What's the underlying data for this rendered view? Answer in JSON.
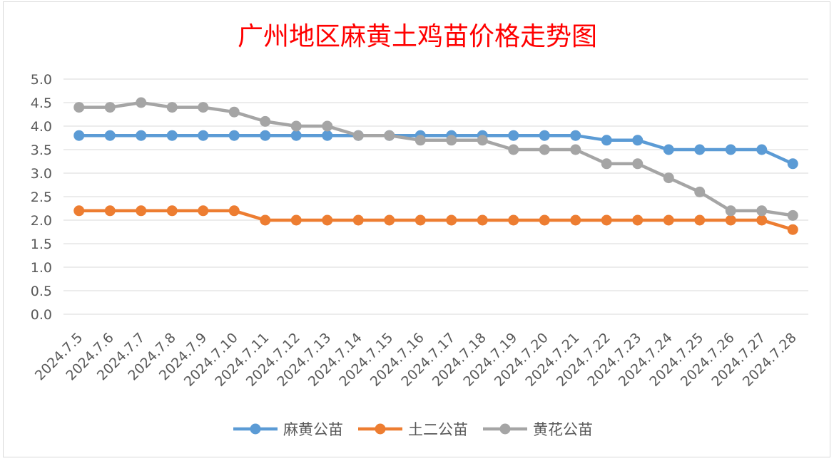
{
  "chart_data": {
    "type": "line",
    "title": "广州地区麻黄土鸡苗价格走势图",
    "title_color": "#ff0000",
    "xlabel": "",
    "ylabel": "",
    "ylim": [
      0,
      5
    ],
    "ytick_step": 0.5,
    "grid": true,
    "legend_position": "bottom",
    "categories": [
      "2024.7.5",
      "2024.7.6",
      "2024.7.7",
      "2024.7.8",
      "2024.7.9",
      "2024.7.10",
      "2024.7.11",
      "2024.7.12",
      "2024.7.13",
      "2024.7.14",
      "2024.7.15",
      "2024.7.16",
      "2024.7.17",
      "2024.7.18",
      "2024.7.19",
      "2024.7.20",
      "2024.7.21",
      "2024.7.22",
      "2024.7.23",
      "2024.7.24",
      "2024.7.25",
      "2024.7.26",
      "2024.7.27",
      "2024.7.28"
    ],
    "series": [
      {
        "name": "麻黄公苗",
        "color": "#5b9bd5",
        "values": [
          3.8,
          3.8,
          3.8,
          3.8,
          3.8,
          3.8,
          3.8,
          3.8,
          3.8,
          3.8,
          3.8,
          3.8,
          3.8,
          3.8,
          3.8,
          3.8,
          3.8,
          3.7,
          3.7,
          3.5,
          3.5,
          3.5,
          3.5,
          3.2
        ]
      },
      {
        "name": "土二公苗",
        "color": "#ed7d31",
        "values": [
          2.2,
          2.2,
          2.2,
          2.2,
          2.2,
          2.2,
          2.0,
          2.0,
          2.0,
          2.0,
          2.0,
          2.0,
          2.0,
          2.0,
          2.0,
          2.0,
          2.0,
          2.0,
          2.0,
          2.0,
          2.0,
          2.0,
          2.0,
          1.8
        ]
      },
      {
        "name": "黄花公苗",
        "color": "#a5a5a5",
        "values": [
          4.4,
          4.4,
          4.5,
          4.4,
          4.4,
          4.3,
          4.1,
          4.0,
          4.0,
          3.8,
          3.8,
          3.7,
          3.7,
          3.7,
          3.5,
          3.5,
          3.5,
          3.2,
          3.2,
          2.9,
          2.6,
          2.2,
          2.2,
          2.1
        ]
      }
    ]
  }
}
